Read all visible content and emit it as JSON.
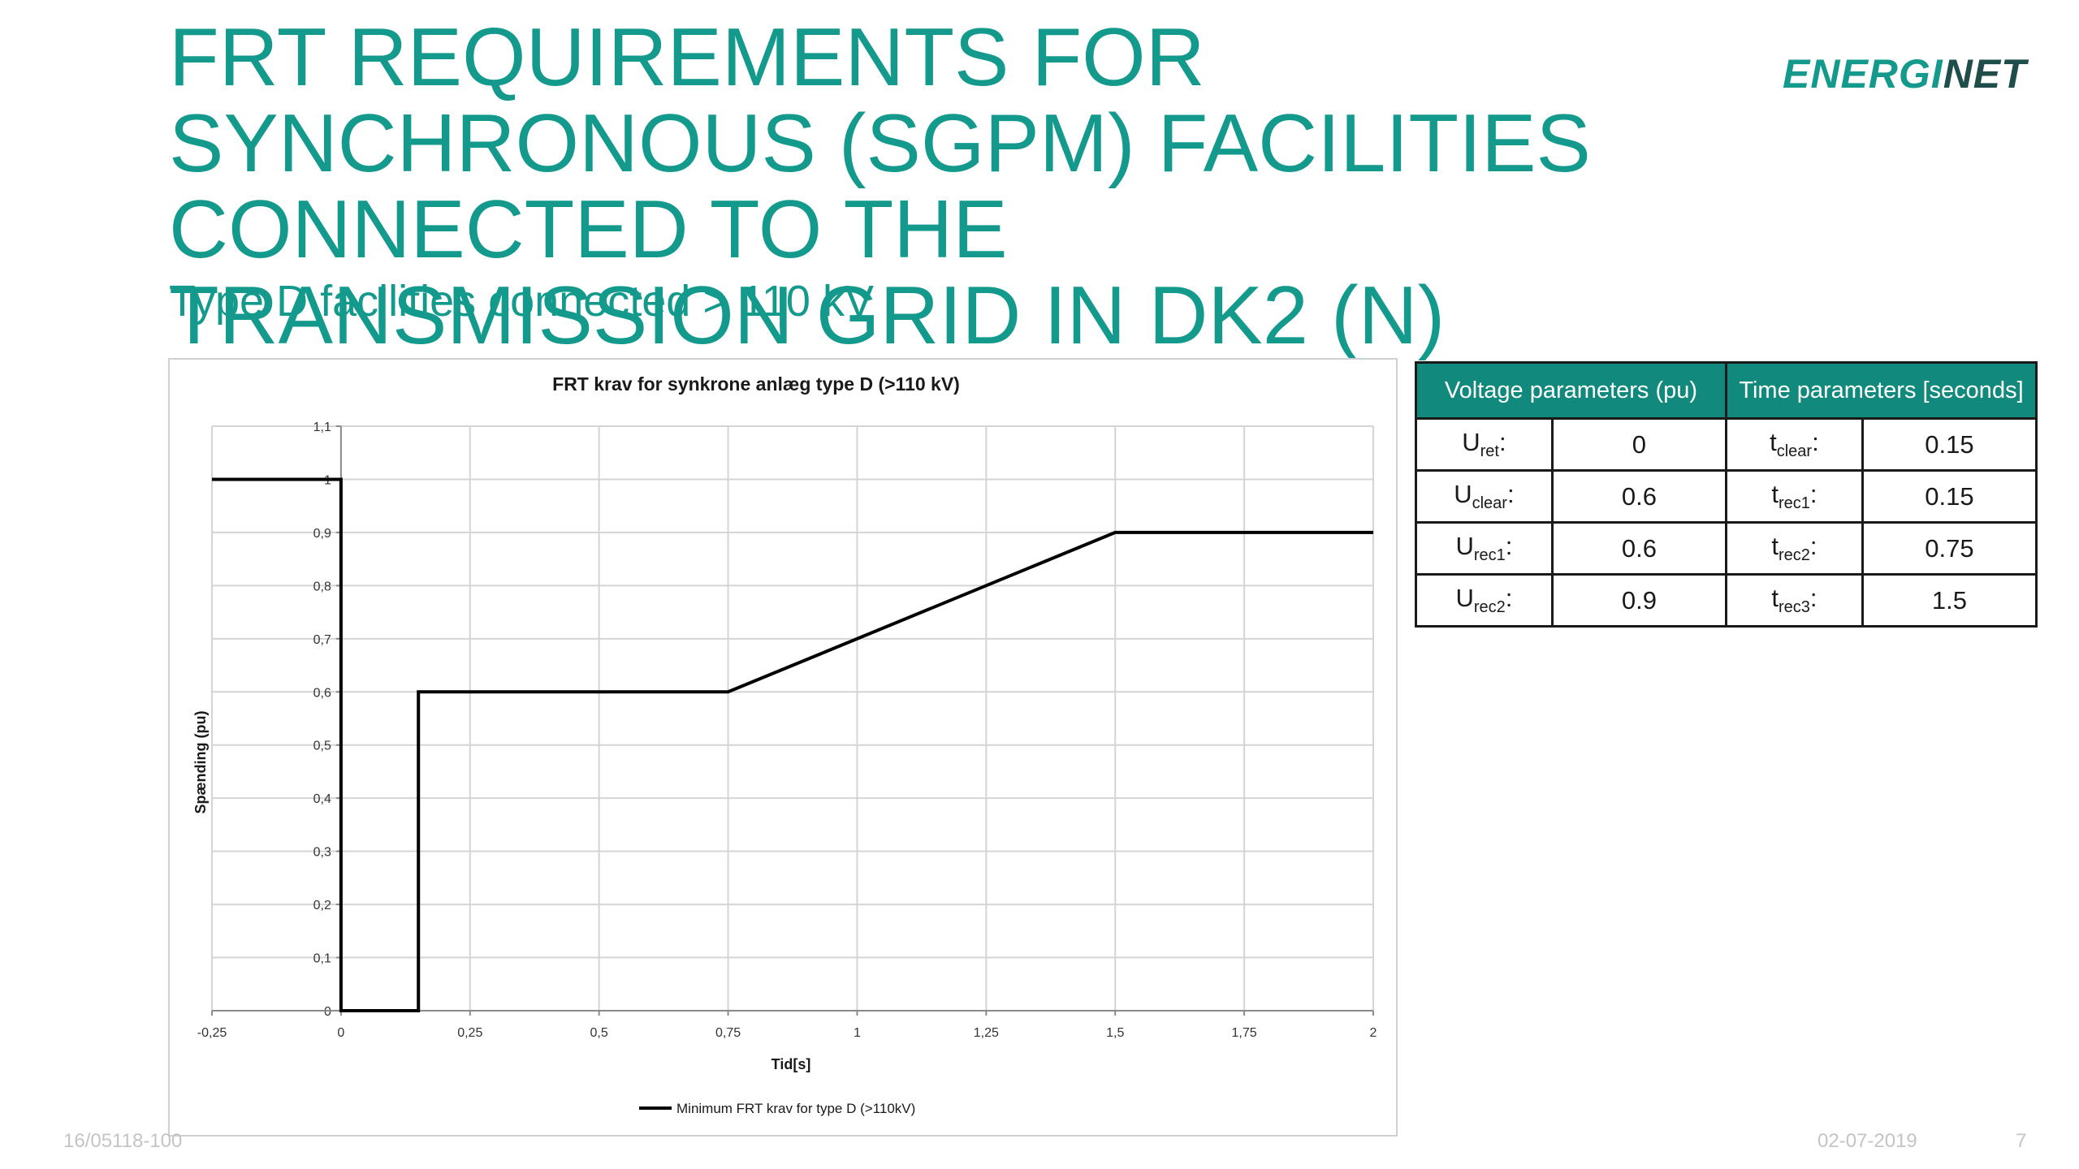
{
  "slide": {
    "title": "FRT REQUIREMENTS FOR SYNCHRONOUS (SGPM) FACILITIES CONNECTED TO THE TRANSMISSION GRID IN DK2 (N)",
    "subtitle": "Type D facilities connected > 110 kV",
    "logo_main": "ENERGI",
    "logo_accent": "NET",
    "footer_left": "16/05118-100",
    "footer_date": "02-07-2019",
    "footer_page": "7"
  },
  "table": {
    "headers": [
      "Voltage parameters (pu)",
      "Time parameters [seconds]"
    ],
    "rows": [
      {
        "u_main": "U",
        "u_sub": "ret",
        "u_val": "0",
        "t_main": "t",
        "t_sub": "clear",
        "t_val": "0.15"
      },
      {
        "u_main": "U",
        "u_sub": "clear",
        "u_val": "0.6",
        "t_main": "t",
        "t_sub": "rec1",
        "t_val": "0.15"
      },
      {
        "u_main": "U",
        "u_sub": "rec1",
        "u_val": "0.6",
        "t_main": "t",
        "t_sub": "rec2",
        "t_val": "0.75"
      },
      {
        "u_main": "U",
        "u_sub": "rec2",
        "u_val": "0.9",
        "t_main": "t",
        "t_sub": "rec3",
        "t_val": "1.5"
      }
    ]
  },
  "chart_data": {
    "type": "line",
    "title": "FRT krav for synkrone anlæg type D (>110 kV)",
    "xlabel": "Tid[s]",
    "ylabel": "Spænding (pu)",
    "xlim": [
      -0.25,
      2
    ],
    "ylim": [
      0,
      1.1
    ],
    "x_ticks": [
      -0.25,
      0,
      0.25,
      0.5,
      0.75,
      1,
      1.25,
      1.5,
      1.75,
      2
    ],
    "x_tick_labels": [
      "-0,25",
      "0",
      "0,25",
      "0,5",
      "0,75",
      "1",
      "1,25",
      "1,5",
      "1,75",
      "2"
    ],
    "y_ticks": [
      0,
      0.1,
      0.2,
      0.3,
      0.4,
      0.5,
      0.6,
      0.7,
      0.8,
      0.9,
      1,
      1.1
    ],
    "y_tick_labels": [
      "0",
      "0,1",
      "0,2",
      "0,3",
      "0,4",
      "0,5",
      "0,6",
      "0,7",
      "0,8",
      "0,9",
      "1",
      "1,1"
    ],
    "grid": true,
    "legend_position": "bottom",
    "series": [
      {
        "name": "Minimum FRT krav for type D (>110kV)",
        "color": "#000000",
        "x": [
          -0.25,
          0,
          0,
          0.15,
          0.15,
          0.75,
          1.5,
          2
        ],
        "y": [
          1,
          1,
          0,
          0,
          0.6,
          0.6,
          0.9,
          0.9
        ]
      }
    ]
  }
}
